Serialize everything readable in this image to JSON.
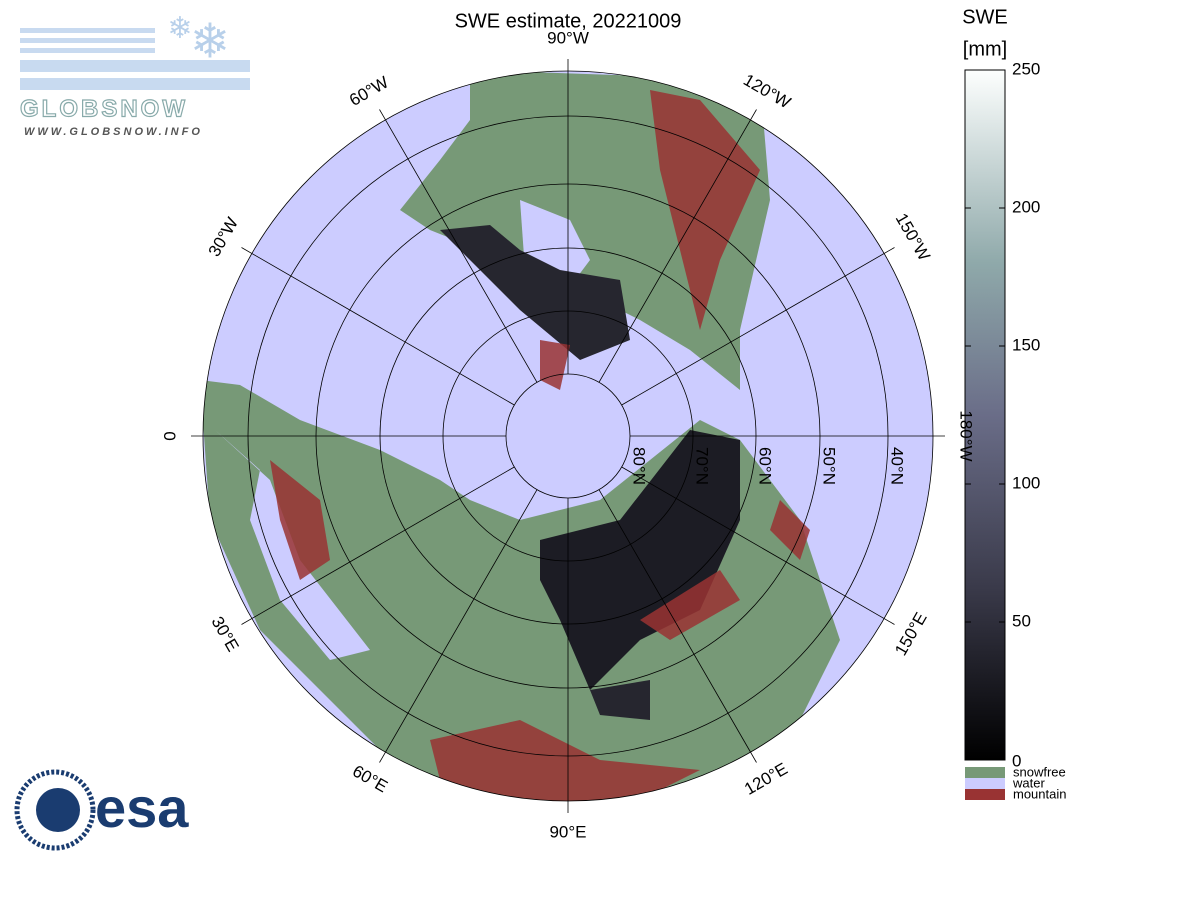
{
  "header": {
    "title": "SWE estimate, 20221009"
  },
  "logos": {
    "globsnow": "GLOBSNOW",
    "globsnow_url": "WWW.GLOBSNOW.INFO",
    "esa": "esa"
  },
  "map": {
    "longitude_labels": [
      "90°W",
      "120°W",
      "150°W",
      "180°W",
      "150°E",
      "120°E",
      "90°E",
      "60°E",
      "30°E",
      "0",
      "30°W",
      "60°W"
    ],
    "latitude_labels": [
      "80°N",
      "70°N",
      "60°N",
      "50°N",
      "40°N"
    ]
  },
  "colorbar": {
    "title": "SWE",
    "unit": "[mm]",
    "range": [
      0,
      250
    ],
    "ticks": [
      0,
      50,
      100,
      150,
      200,
      250
    ],
    "legend": [
      {
        "label": "snowfree",
        "color": "#779977"
      },
      {
        "label": "water",
        "color": "#ccccff"
      },
      {
        "label": "mountain",
        "color": "#993333"
      }
    ]
  }
}
